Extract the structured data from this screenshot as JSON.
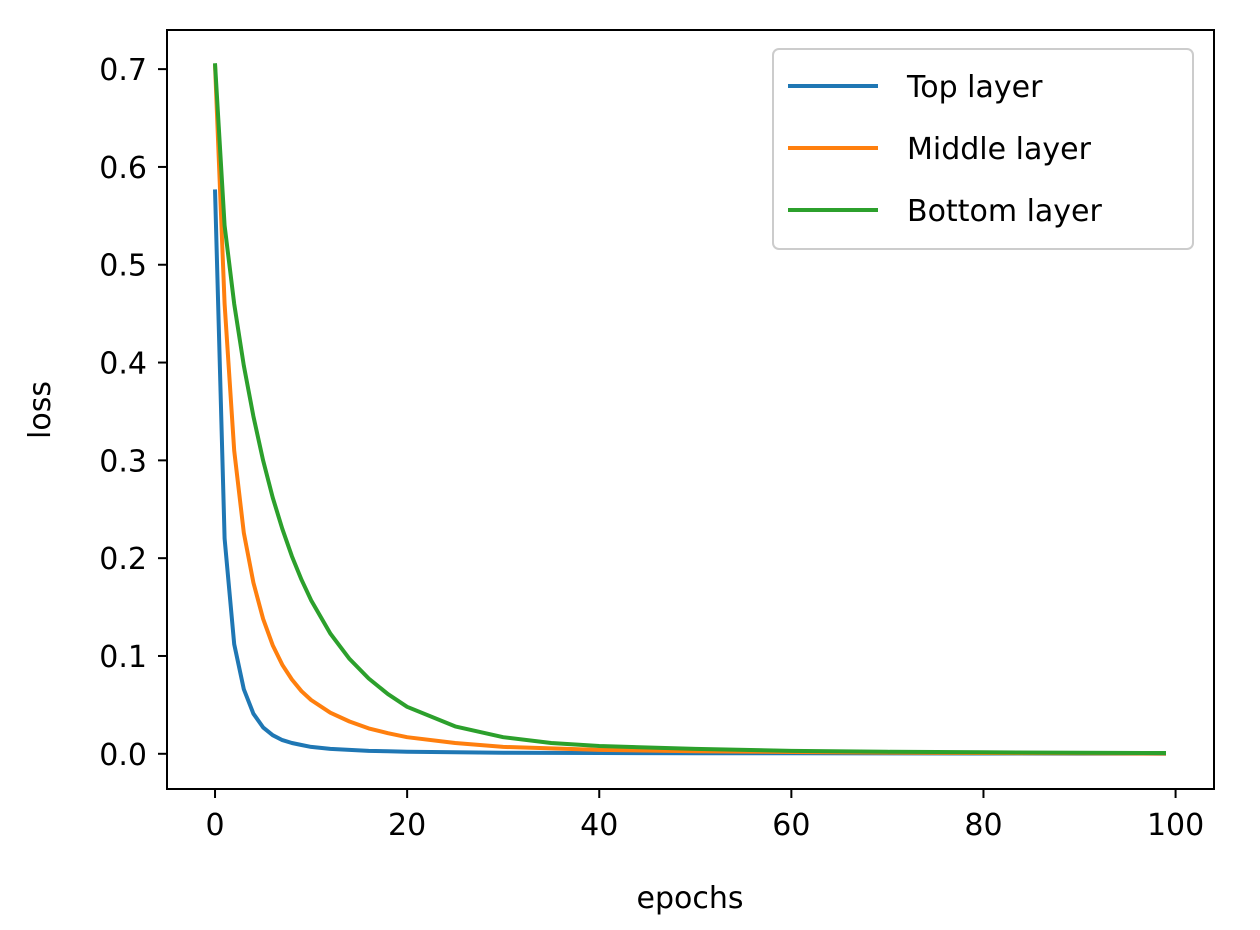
{
  "chart_data": {
    "type": "line",
    "title": "",
    "xlabel": "epochs",
    "ylabel": "loss",
    "xlim": [
      -5,
      104
    ],
    "ylim": [
      -0.036,
      0.74
    ],
    "xticks": [
      0,
      20,
      40,
      60,
      80,
      100
    ],
    "xtick_labels": [
      "0",
      "20",
      "40",
      "60",
      "80",
      "100"
    ],
    "yticks": [
      0.0,
      0.1,
      0.2,
      0.3,
      0.4,
      0.5,
      0.6,
      0.7
    ],
    "ytick_labels": [
      "0.0",
      "0.1",
      "0.2",
      "0.3",
      "0.4",
      "0.5",
      "0.6",
      "0.7"
    ],
    "grid": false,
    "legend_position": "top-right",
    "series": [
      {
        "name": "Top layer",
        "color": "#1f77b4",
        "x": [
          0,
          1,
          2,
          3,
          4,
          5,
          6,
          7,
          8,
          9,
          10,
          12,
          14,
          16,
          18,
          20,
          25,
          30,
          40,
          50,
          60,
          70,
          80,
          90,
          99
        ],
        "y": [
          0.577,
          0.22,
          0.112,
          0.066,
          0.041,
          0.027,
          0.019,
          0.014,
          0.011,
          0.009,
          0.007,
          0.005,
          0.004,
          0.003,
          0.0025,
          0.002,
          0.0015,
          0.001,
          0.0008,
          0.0006,
          0.0005,
          0.0004,
          0.0003,
          0.0002,
          0.0001
        ]
      },
      {
        "name": "Middle layer",
        "color": "#ff7f0e",
        "x": [
          0,
          1,
          2,
          3,
          4,
          5,
          6,
          7,
          8,
          9,
          10,
          12,
          14,
          16,
          18,
          20,
          25,
          30,
          40,
          50,
          60,
          70,
          80,
          90,
          99
        ],
        "y": [
          0.705,
          0.46,
          0.31,
          0.226,
          0.175,
          0.138,
          0.111,
          0.091,
          0.076,
          0.064,
          0.055,
          0.042,
          0.033,
          0.026,
          0.021,
          0.017,
          0.011,
          0.007,
          0.004,
          0.0025,
          0.0018,
          0.0012,
          0.0008,
          0.0005,
          0.0003
        ]
      },
      {
        "name": "Bottom layer",
        "color": "#2ca02c",
        "x": [
          0,
          1,
          2,
          3,
          4,
          5,
          6,
          7,
          8,
          9,
          10,
          12,
          14,
          16,
          18,
          20,
          25,
          30,
          35,
          40,
          50,
          60,
          70,
          80,
          90,
          99
        ],
        "y": [
          0.706,
          0.54,
          0.46,
          0.397,
          0.345,
          0.3,
          0.262,
          0.23,
          0.202,
          0.178,
          0.157,
          0.123,
          0.097,
          0.077,
          0.061,
          0.048,
          0.028,
          0.017,
          0.011,
          0.008,
          0.005,
          0.003,
          0.002,
          0.0015,
          0.001,
          0.0008
        ]
      }
    ]
  }
}
